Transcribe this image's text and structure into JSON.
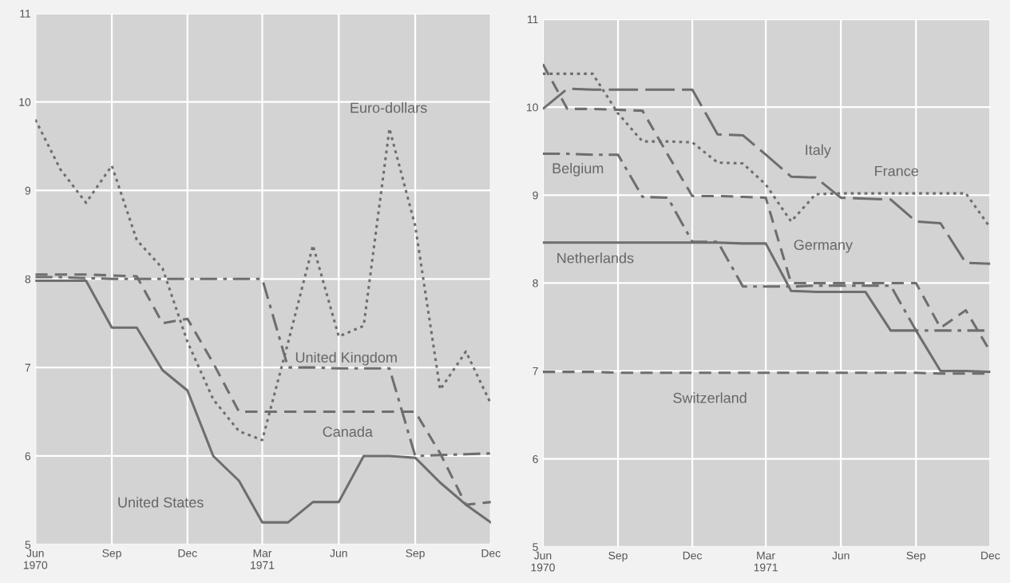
{
  "chart_data": [
    {
      "type": "line",
      "xlim": [
        "1970-06",
        "1971-12"
      ],
      "ylim": [
        5,
        11
      ],
      "yticks": [
        5,
        6,
        7,
        8,
        9,
        10,
        11
      ],
      "xticks": [
        {
          "value": "1970-06",
          "label": "Jun\n1970"
        },
        {
          "value": "1970-09",
          "label": "Sep"
        },
        {
          "value": "1970-12",
          "label": "Dec"
        },
        {
          "value": "1971-03",
          "label": "Mar\n1971"
        },
        {
          "value": "1971-06",
          "label": "Jun"
        },
        {
          "value": "1971-09",
          "label": "Sep"
        },
        {
          "value": "1971-12",
          "label": "Dec"
        }
      ],
      "grid": true,
      "legend": false,
      "x": [
        "1970-06",
        "1970-07",
        "1970-08",
        "1970-09",
        "1970-10",
        "1970-11",
        "1970-12",
        "1971-01",
        "1971-02",
        "1971-03",
        "1971-04",
        "1971-05",
        "1971-06",
        "1971-07",
        "1971-08",
        "1971-09",
        "1971-10",
        "1971-11",
        "1971-12"
      ],
      "series": [
        {
          "name": "Euro-dollars",
          "color": "#6e6e6e",
          "line_style": "dotted",
          "values": [
            9.8,
            9.24,
            8.86,
            9.28,
            8.44,
            8.12,
            7.29,
            6.64,
            6.28,
            6.18,
            7.28,
            8.38,
            7.35,
            7.47,
            9.7,
            8.6,
            6.75,
            7.18,
            6.59
          ]
        },
        {
          "name": "United Kingdom",
          "color": "#6e6e6e",
          "line_style": "dashdot",
          "values": [
            8.02,
            8.02,
            8.01,
            8.0,
            8.0,
            8.0,
            8.0,
            8.0,
            8.0,
            8.0,
            7.0,
            7.0,
            6.99,
            6.99,
            6.99,
            6.0,
            6.01,
            6.02,
            6.03
          ]
        },
        {
          "name": "Canada",
          "color": "#6e6e6e",
          "line_style": "dashed",
          "values": [
            8.05,
            8.05,
            8.05,
            8.04,
            8.03,
            7.5,
            7.55,
            7.05,
            6.5,
            6.5,
            6.5,
            6.5,
            6.5,
            6.5,
            6.5,
            6.5,
            6.03,
            5.45,
            5.48
          ]
        },
        {
          "name": "United States",
          "color": "#6e6e6e",
          "line_style": "solid",
          "values": [
            7.98,
            7.98,
            7.98,
            7.45,
            7.45,
            6.97,
            6.74,
            6.0,
            5.72,
            5.25,
            5.25,
            5.48,
            5.48,
            6.0,
            6.0,
            5.98,
            5.7,
            5.45,
            5.25
          ]
        }
      ]
    },
    {
      "type": "line",
      "xlim": [
        "1970-06",
        "1971-12"
      ],
      "ylim": [
        5,
        11
      ],
      "yticks": [
        5,
        6,
        7,
        8,
        9,
        10,
        11
      ],
      "xticks": [
        {
          "value": "1970-06",
          "label": "Jun\n1970"
        },
        {
          "value": "1970-09",
          "label": "Sep"
        },
        {
          "value": "1970-12",
          "label": "Dec"
        },
        {
          "value": "1971-03",
          "label": "Mar\n1971"
        },
        {
          "value": "1971-06",
          "label": "Jun"
        },
        {
          "value": "1971-09",
          "label": "Sep"
        },
        {
          "value": "1971-12",
          "label": "Dec"
        }
      ],
      "grid": true,
      "legend": false,
      "x": [
        "1970-06",
        "1970-07",
        "1970-08",
        "1970-09",
        "1970-10",
        "1970-11",
        "1970-12",
        "1971-01",
        "1971-02",
        "1971-03",
        "1971-04",
        "1971-05",
        "1971-06",
        "1971-07",
        "1971-08",
        "1971-09",
        "1971-10",
        "1971-11",
        "1971-12"
      ],
      "series": [
        {
          "name": "Italy",
          "color": "#6e6e6e",
          "line_style": "longdash",
          "values": [
            9.98,
            10.21,
            10.2,
            10.2,
            10.2,
            10.2,
            10.2,
            9.69,
            9.68,
            9.46,
            9.21,
            9.2,
            8.97,
            8.96,
            8.95,
            8.7,
            8.68,
            8.23,
            8.22
          ]
        },
        {
          "name": "France",
          "color": "#6e6e6e",
          "line_style": "dotted",
          "values": [
            10.38,
            10.38,
            10.38,
            9.93,
            9.61,
            9.61,
            9.6,
            9.37,
            9.36,
            9.12,
            8.7,
            9.01,
            9.02,
            9.02,
            9.02,
            9.02,
            9.02,
            9.02,
            8.63
          ]
        },
        {
          "name": "Belgium",
          "color": "#6e6e6e",
          "line_style": "dashdot",
          "values": [
            9.47,
            9.47,
            9.46,
            9.46,
            8.98,
            8.97,
            8.47,
            8.47,
            7.96,
            7.96,
            7.96,
            7.97,
            7.97,
            7.97,
            7.97,
            7.46,
            7.46,
            7.46,
            7.46
          ]
        },
        {
          "name": "Germany",
          "color": "#6e6e6e",
          "line_style": "dashed",
          "values": [
            10.49,
            9.98,
            9.98,
            9.97,
            9.96,
            9.46,
            8.99,
            8.99,
            8.98,
            8.97,
            8.0,
            8.0,
            8.0,
            8.0,
            8.0,
            8.0,
            7.49,
            7.69,
            7.22
          ]
        },
        {
          "name": "Netherlands",
          "color": "#6e6e6e",
          "line_style": "solid",
          "values": [
            8.46,
            8.46,
            8.46,
            8.46,
            8.46,
            8.46,
            8.46,
            8.46,
            8.45,
            8.45,
            7.91,
            7.9,
            7.9,
            7.9,
            7.46,
            7.46,
            7.0,
            7.0,
            6.99
          ]
        },
        {
          "name": "Switzerland",
          "color": "#6e6e6e",
          "line_style": "dashed",
          "values": [
            6.99,
            6.99,
            6.99,
            6.98,
            6.98,
            6.98,
            6.98,
            6.98,
            6.98,
            6.98,
            6.98,
            6.98,
            6.98,
            6.98,
            6.98,
            6.98,
            6.97,
            6.97,
            6.97
          ]
        }
      ]
    }
  ]
}
